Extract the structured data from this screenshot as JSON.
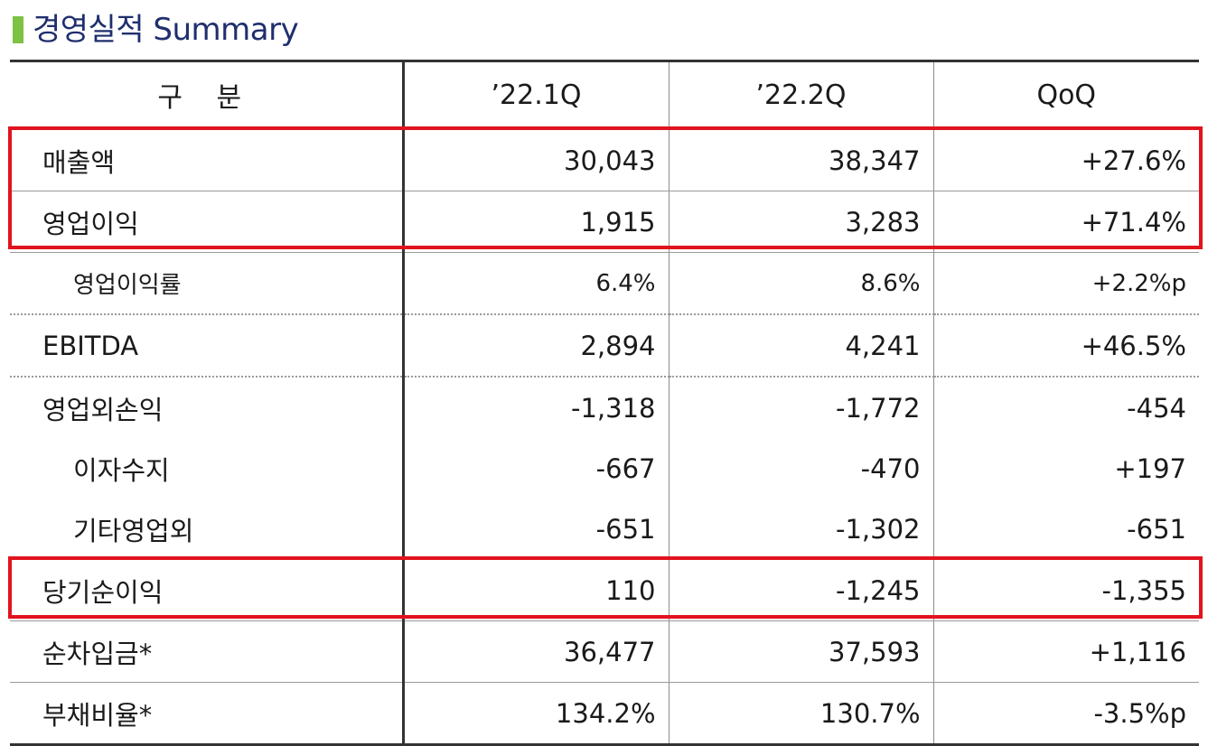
{
  "title": "경영실적 Summary",
  "table": {
    "headers": [
      "구 분",
      "’22.1Q",
      "’22.2Q",
      "QoQ"
    ],
    "rows": [
      {
        "label": "매출액",
        "q1": "30,043",
        "q2": "38,347",
        "qoq": "+27.6%"
      },
      {
        "label": "영업이익",
        "q1": "1,915",
        "q2": "3,283",
        "qoq": "+71.4%"
      },
      {
        "label": "영업이익률",
        "q1": "6.4%",
        "q2": "8.6%",
        "qoq": "+2.2%p"
      },
      {
        "label": "EBITDA",
        "q1": "2,894",
        "q2": "4,241",
        "qoq": "+46.5%"
      },
      {
        "label": "영업외손익",
        "q1": "-1,318",
        "q2": "-1,772",
        "qoq": "-454"
      },
      {
        "label": "이자수지",
        "q1": "-667",
        "q2": "-470",
        "qoq": "+197"
      },
      {
        "label": "기타영업외",
        "q1": "-651",
        "q2": "-1,302",
        "qoq": "-651"
      },
      {
        "label": "당기순이익",
        "q1": "110",
        "q2": "-1,245",
        "qoq": "-1,355"
      },
      {
        "label": "순차입금*",
        "q1": "36,477",
        "q2": "37,593",
        "qoq": "+1,116"
      },
      {
        "label": "부채비율*",
        "q1": "134.2%",
        "q2": "130.7%",
        "qoq": "-3.5%p"
      }
    ]
  },
  "colors": {
    "title": "#1f2f6e",
    "title_accent": "#7dc243",
    "highlight": "#e0141e"
  }
}
